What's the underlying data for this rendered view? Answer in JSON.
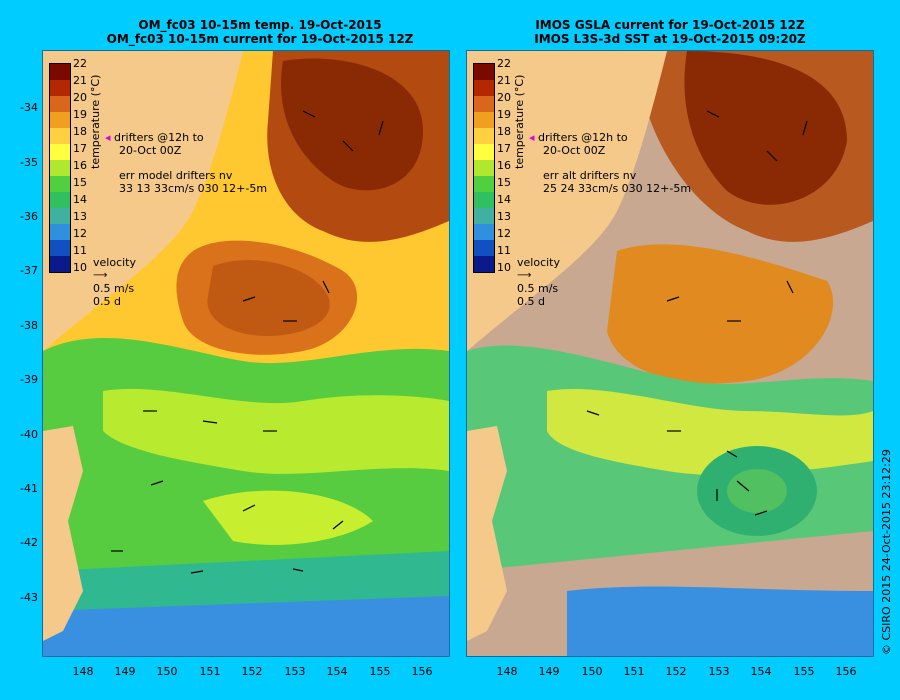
{
  "left_panel": {
    "title_line1": "OM_fc03 10-15m temp. 19-Oct-2015",
    "title_line2": "OM_fc03 10-15m current for 19-Oct-2015 12Z",
    "drifters_line1": "drifters @12h to",
    "drifters_line2": "20-Oct 00Z",
    "err_line1": "err model drifters nv",
    "err_line2": "33 13 33cm/s 030 12+-5m",
    "velocity_label": "velocity",
    "velocity_speed": "0.5 m/s",
    "velocity_time": "0.5 d"
  },
  "right_panel": {
    "title_line1": "IMOS GSLA current for 19-Oct-2015 12Z",
    "title_line2": "IMOS L3S-3d SST at 19-Oct-2015 09:20Z",
    "drifters_line1": "drifters @12h to",
    "drifters_line2": "20-Oct 00Z",
    "err_line1": "err alt drifters nv",
    "err_line2": "25 24 33cm/s 030 12+-5m",
    "velocity_label": "velocity",
    "velocity_speed": "0.5 m/s",
    "velocity_time": "0.5 d"
  },
  "colorbar": {
    "label": "temperature (°C)",
    "ticks": [
      "22",
      "21",
      "20",
      "19",
      "18",
      "17",
      "16",
      "15",
      "14",
      "13",
      "12",
      "11",
      "10"
    ],
    "colors": [
      "#7a0a00",
      "#b32800",
      "#d9661a",
      "#f0a020",
      "#ffd040",
      "#ffff40",
      "#b0e830",
      "#50d040",
      "#30c060",
      "#40b0a0",
      "#3090e0",
      "#1050c0",
      "#0a1a8a"
    ]
  },
  "axes": {
    "lat_ticks": [
      "-34",
      "-35",
      "-36",
      "-37",
      "-38",
      "-39",
      "-40",
      "-41",
      "-42",
      "-43"
    ],
    "lon_ticks": [
      "148",
      "149",
      "150",
      "151",
      "152",
      "153",
      "154",
      "155",
      "156"
    ]
  },
  "footer": "© CSIRO 2015   24-Oct-2015 23:12:29"
}
